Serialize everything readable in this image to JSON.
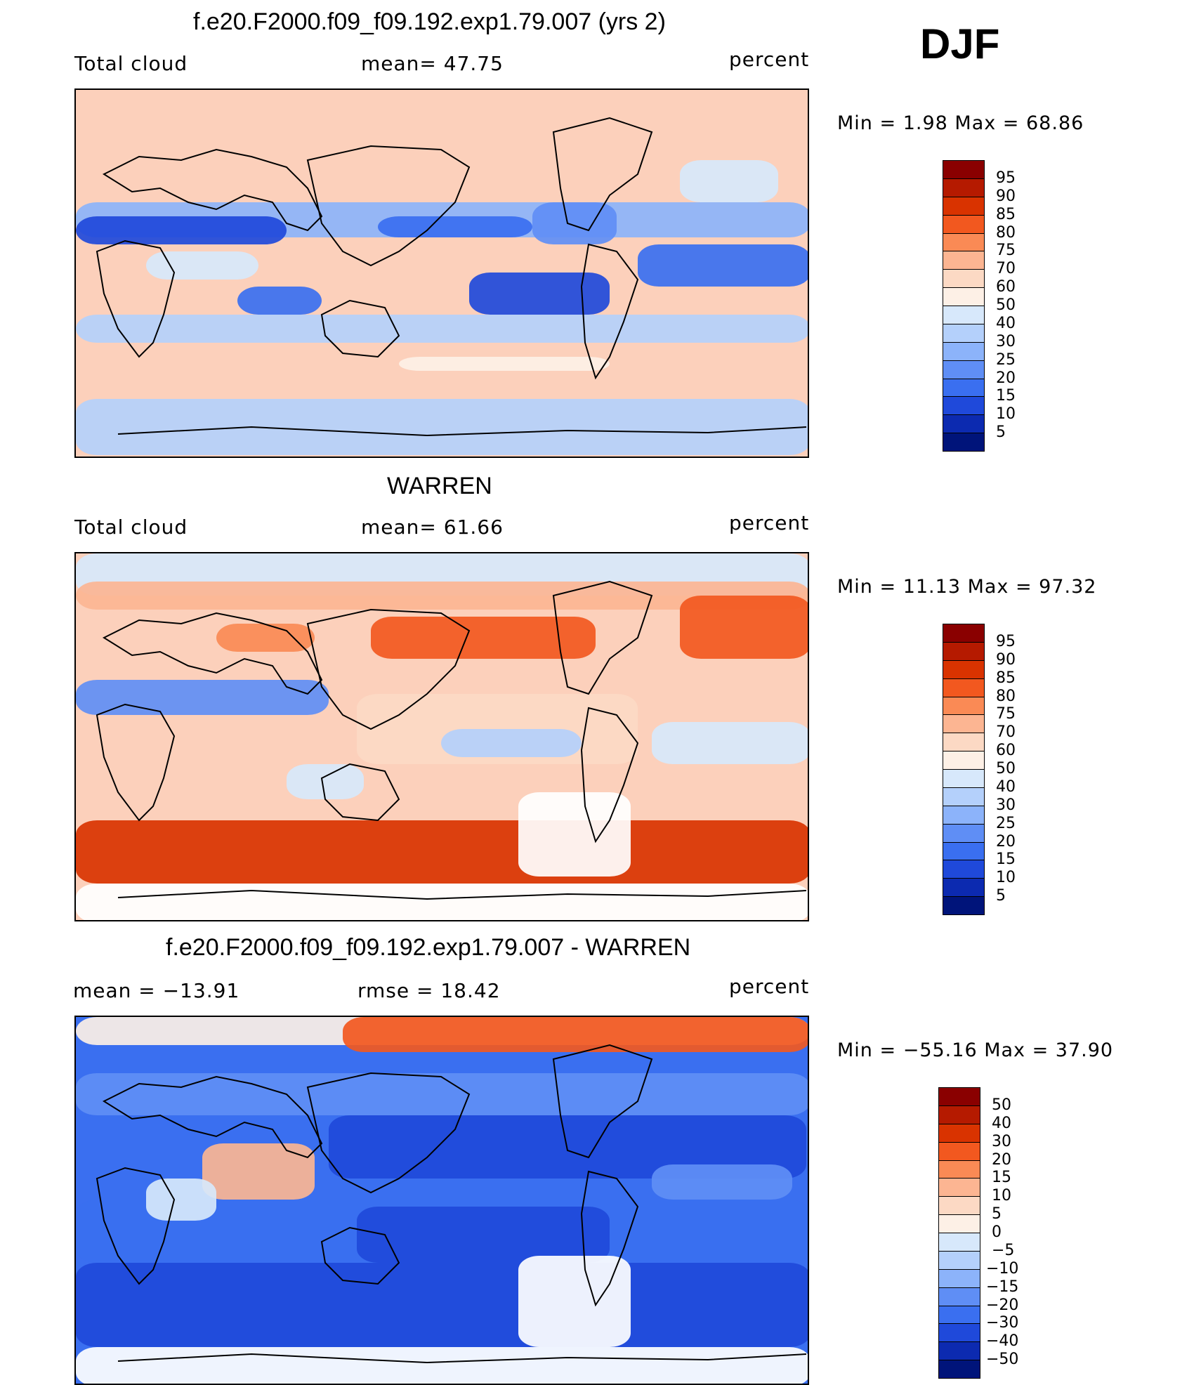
{
  "season": "DJF",
  "panels": [
    {
      "id": "model",
      "title": "f.e20.F2000.f09_f09.192.exp1.79.007 (yrs 2)",
      "left_label": "Total cloud",
      "center_label": "mean=   47.75",
      "right_label": "percent",
      "minmax": "Min =    1.98 Max =   68.86",
      "colorbar": {
        "labels": [
          "95",
          "90",
          "85",
          "80",
          "75",
          "70",
          "60",
          "50",
          "40",
          "30",
          "25",
          "20",
          "15",
          "10",
          "5"
        ],
        "colors": [
          "#8a0000",
          "#b51a00",
          "#d93300",
          "#f2581f",
          "#fa8a55",
          "#fcb592",
          "#fcd9c4",
          "#fdf0e6",
          "#d7e8fb",
          "#b4d0fb",
          "#8cb3fa",
          "#5f8ef5",
          "#3a6ff0",
          "#1f49da",
          "#0c2ab0",
          "#00147a"
        ]
      },
      "map_style": "model"
    },
    {
      "id": "obs",
      "title": "WARREN",
      "left_label": "Total cloud",
      "center_label": "mean=   61.66",
      "right_label": "percent",
      "minmax": "Min =   11.13 Max =   97.32",
      "colorbar": {
        "labels": [
          "95",
          "90",
          "85",
          "80",
          "75",
          "70",
          "60",
          "50",
          "40",
          "30",
          "25",
          "20",
          "15",
          "10",
          "5"
        ],
        "colors": [
          "#8a0000",
          "#b51a00",
          "#d93300",
          "#f2581f",
          "#fa8a55",
          "#fcb592",
          "#fcd9c4",
          "#fdf0e6",
          "#d7e8fb",
          "#b4d0fb",
          "#8cb3fa",
          "#5f8ef5",
          "#3a6ff0",
          "#1f49da",
          "#0c2ab0",
          "#00147a"
        ]
      },
      "map_style": "obs"
    },
    {
      "id": "diff",
      "title": "f.e20.F2000.f09_f09.192.exp1.79.007 - WARREN",
      "left_label": "mean = −13.91",
      "center_label": "rmse =   18.42",
      "right_label": "percent",
      "minmax": "Min = −55.16 Max =   37.90",
      "colorbar": {
        "labels": [
          "50",
          "40",
          "30",
          "20",
          "15",
          "10",
          "5",
          "0",
          "−5",
          "−10",
          "−15",
          "−20",
          "−30",
          "−40",
          "−50"
        ],
        "colors": [
          "#8a0000",
          "#b51a00",
          "#d93300",
          "#f2581f",
          "#fa8a55",
          "#fcb592",
          "#fcd9c4",
          "#fdf0e6",
          "#d7e8fb",
          "#b4d0fb",
          "#8cb3fa",
          "#5f8ef5",
          "#3a6ff0",
          "#1f49da",
          "#0c2ab0",
          "#00147a"
        ]
      },
      "map_style": "diff"
    }
  ]
}
